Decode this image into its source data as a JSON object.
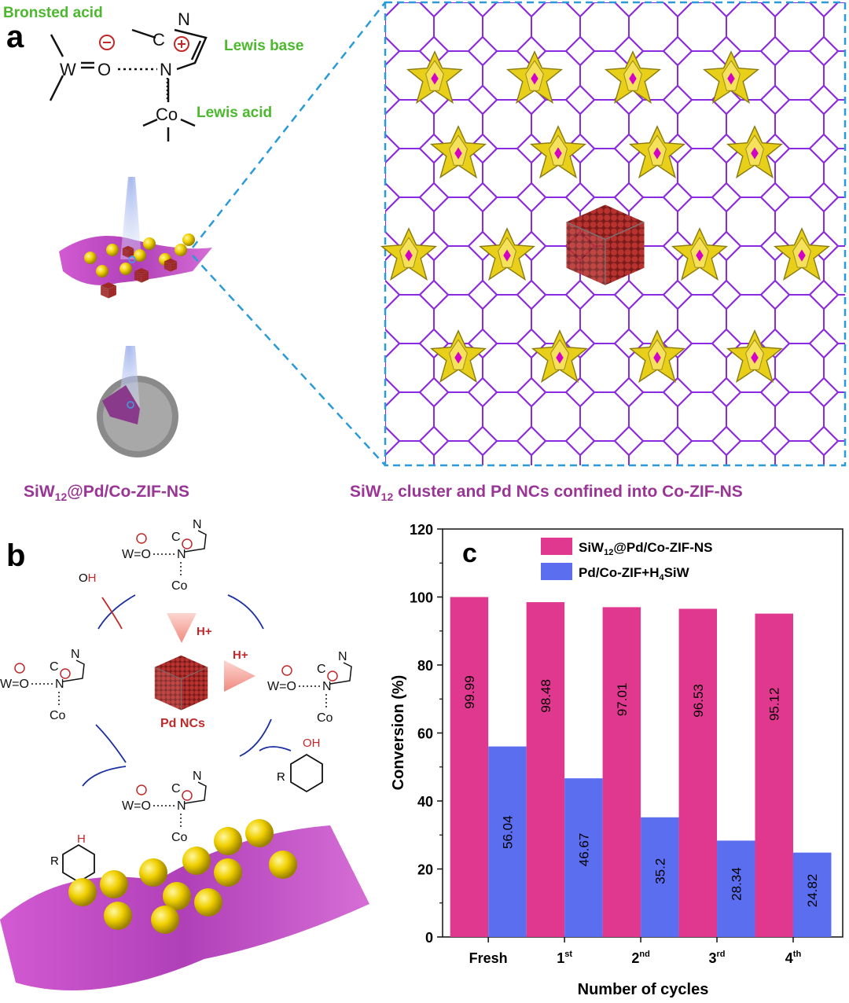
{
  "panel_a": {
    "label": "a",
    "annotations": {
      "bronsted": "Bronsted acid",
      "lewis_base": "Lewis base",
      "lewis_acid": "Lewis acid"
    },
    "atoms": {
      "W": "W",
      "O": "O",
      "N": "N",
      "C": "C",
      "Co": "Co",
      "minus": "−",
      "plus": "+"
    },
    "caption_left": {
      "p1": "SiW",
      "sub": "12",
      "p2": "@Pd/Co-ZIF-NS"
    },
    "caption_right": {
      "p1": "SiW",
      "sub": "12",
      "p2": " cluster and Pd NCs confined into Co-ZIF-NS"
    }
  },
  "panel_b": {
    "label": "b",
    "pd_label": "Pd NCs",
    "h_plus": "H+",
    "oh": "OH",
    "h": "H",
    "r": "R",
    "o": "O"
  },
  "colors": {
    "series1": "#e0388e",
    "series2": "#5b6ef0",
    "purple": "#8a2be2",
    "green": "#4cb82e",
    "red": "#c0282a"
  },
  "chart_data": {
    "type": "bar",
    "panel_label": "c",
    "xlabel": "Number of cycles",
    "ylabel": "Conversion (%)",
    "ylim": [
      0,
      120
    ],
    "yticks": [
      0,
      20,
      40,
      60,
      80,
      100,
      120
    ],
    "categories": [
      {
        "base": "Fresh",
        "sup": ""
      },
      {
        "base": "1",
        "sup": "st"
      },
      {
        "base": "2",
        "sup": "nd"
      },
      {
        "base": "3",
        "sup": "rd"
      },
      {
        "base": "4",
        "sup": "th"
      }
    ],
    "legend_position": "top-center",
    "series": [
      {
        "name": "SiW12@Pd/Co-ZIF-NS",
        "legend": {
          "p1": "SiW",
          "sub": "12",
          "p2": "@Pd/Co-ZIF-NS"
        },
        "color": "#e0388e",
        "values": [
          99.99,
          98.48,
          97.01,
          96.53,
          95.12
        ],
        "labels": [
          "99.99",
          "98.48",
          "97.01",
          "96.53",
          "95.12"
        ]
      },
      {
        "name": "Pd/Co-ZIF+H4SiW",
        "legend": {
          "p1": "Pd/Co-ZIF+H",
          "sub": "4",
          "p2": "SiW"
        },
        "color": "#5b6ef0",
        "values": [
          56.04,
          46.67,
          35.2,
          28.34,
          24.82
        ],
        "labels": [
          "56.04",
          "46.67",
          "35.2",
          "28.34",
          "24.82"
        ]
      }
    ]
  }
}
